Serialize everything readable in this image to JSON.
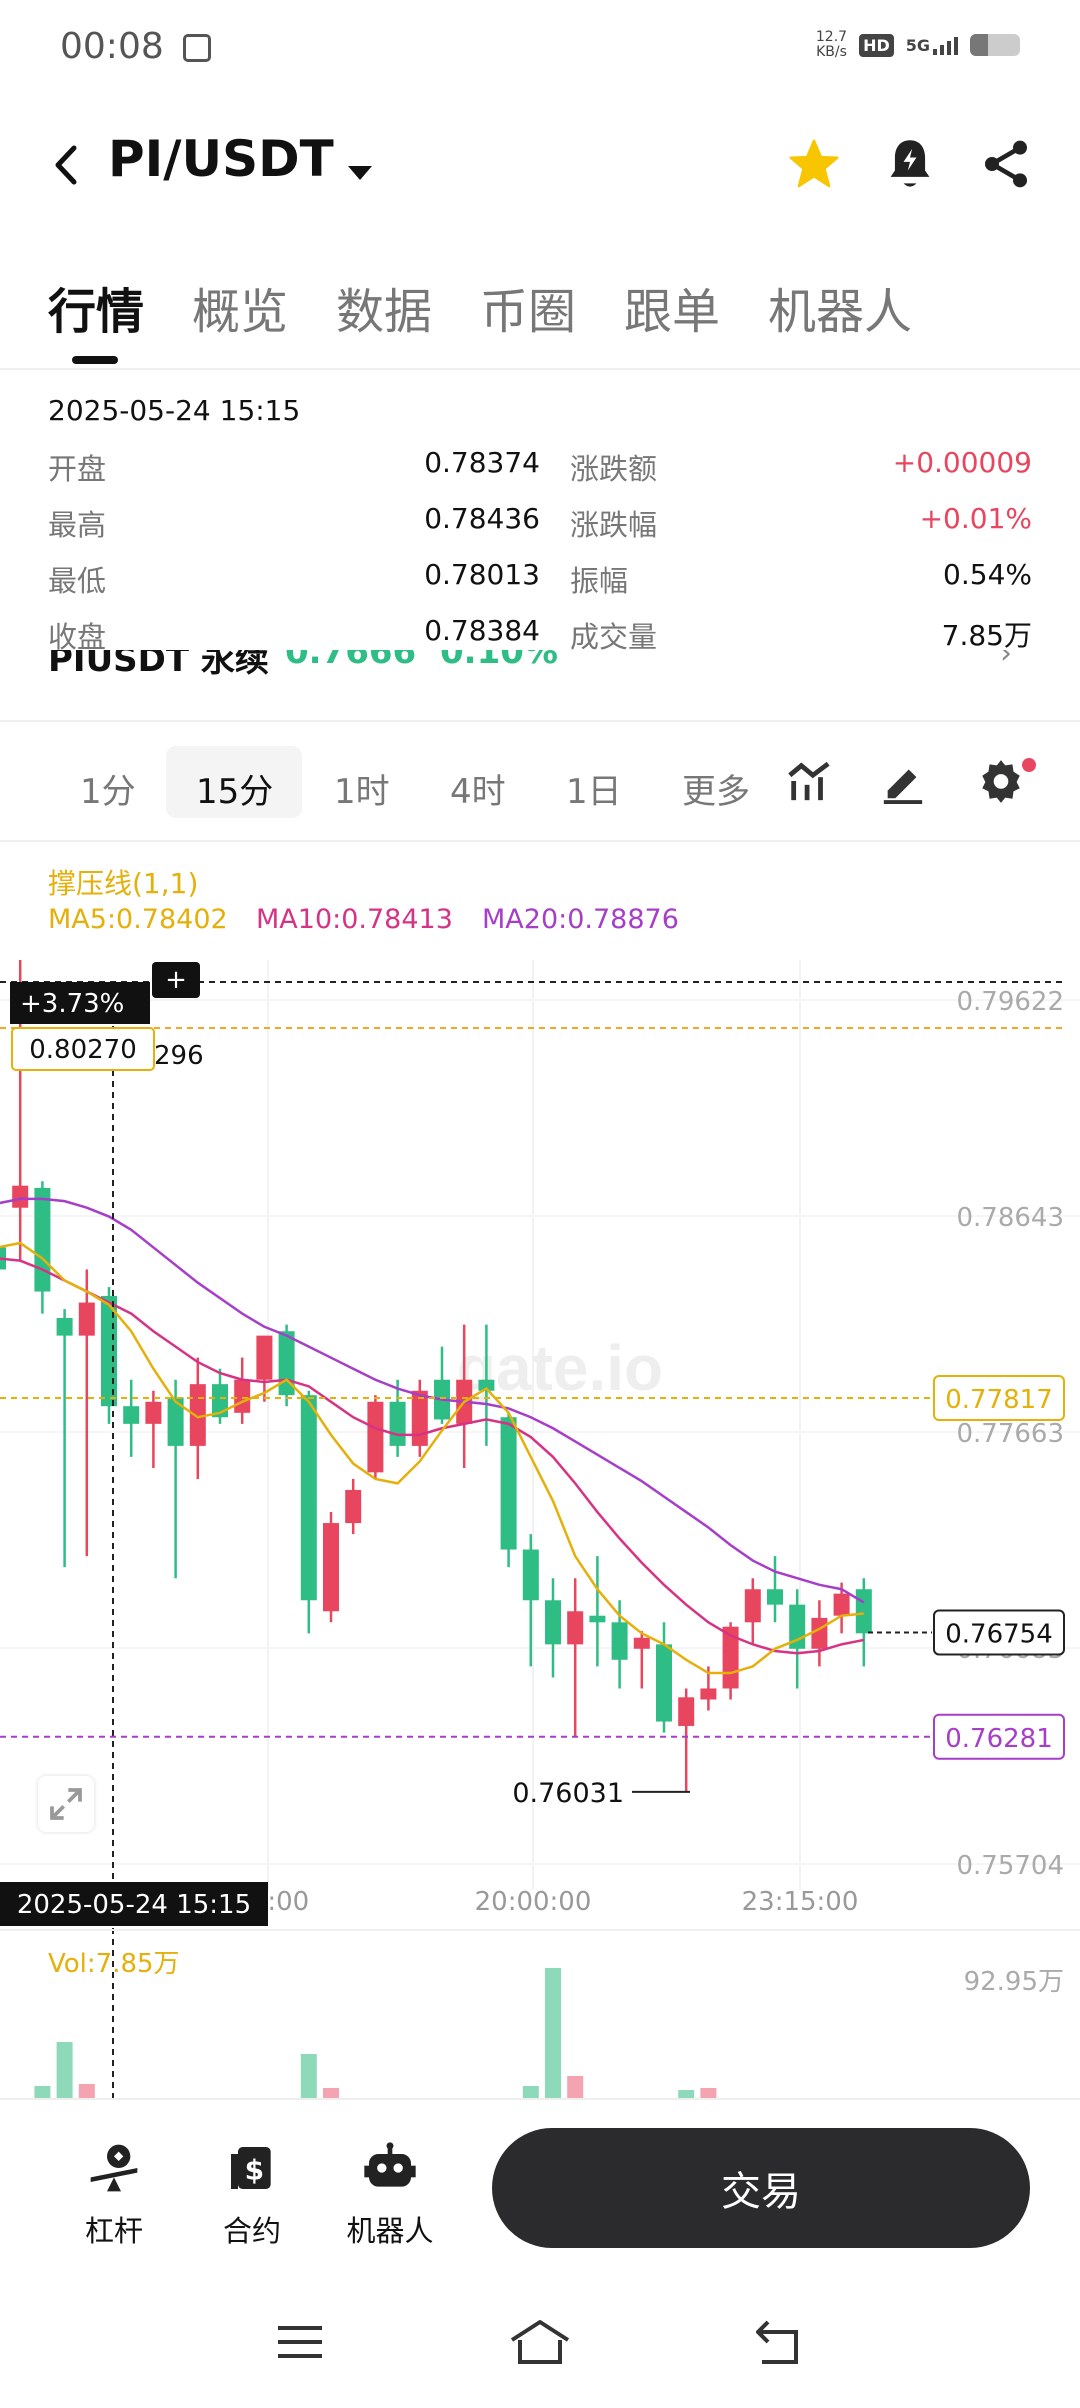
{
  "status_bar": {
    "time": "00:08",
    "speed_value": "12.7",
    "speed_unit": "KB/s",
    "hd": "HD",
    "network": "5G"
  },
  "header": {
    "pair": "PI/USDT",
    "icons": [
      "back-arrow-icon",
      "dropdown-caret-icon",
      "star-icon",
      "bell-icon",
      "share-icon"
    ],
    "star_color": "#f7c600"
  },
  "tabs": [
    "行情",
    "概览",
    "数据",
    "币圈",
    "跟单",
    "机器人"
  ],
  "ohlc": {
    "time": "2025-05-24 15:15",
    "left": [
      {
        "label": "开盘",
        "value": "0.78374"
      },
      {
        "label": "最高",
        "value": "0.78436"
      },
      {
        "label": "最低",
        "value": "0.78013"
      },
      {
        "label": "收盘",
        "value": "0.78384"
      }
    ],
    "right": [
      {
        "label": "涨跌额",
        "value": "+0.00009"
      },
      {
        "label": "涨跌幅",
        "value": "+0.01%"
      },
      {
        "label": "振幅",
        "value": "0.54%"
      },
      {
        "label": "成交量",
        "value": "7.85万"
      }
    ],
    "up_color": "#e8455f"
  },
  "ticker_peek": {
    "symbol": "PIUSDT 永续",
    "price": "0.7666",
    "change": "0.10%"
  },
  "intervals": [
    "1分",
    "15分",
    "1时",
    "4时",
    "1日",
    "更多"
  ],
  "active_interval": "15分",
  "indicators": {
    "title": "撑压线(1,1)",
    "ma5": "MA5:0.78402",
    "ma10": "MA10:0.78413",
    "ma20": "MA20:0.78876"
  },
  "chart_data": {
    "type": "candlestick",
    "y_axis_ticks": [
      "0.79622",
      "0.78643",
      "0.77663",
      "0.76683",
      "0.75704"
    ],
    "x_axis_ticks": [
      "2025-05-24 15:15",
      "20:00:00",
      "23:15:00"
    ],
    "crosshair_change": "+3.73%",
    "crosshair_price": "0.80270",
    "high_label_partial": "296",
    "support_line": "0.77817",
    "resistance_line": "0.76281",
    "last_price": "0.76754",
    "low_label": "0.76031",
    "volume_label": "Vol:7.85万",
    "volume_max": "92.95万",
    "watermark": "gate.io",
    "ylim": [
      0.75704,
      0.79622
    ],
    "candles": [
      {
        "o": 0.785,
        "h": 0.788,
        "l": 0.784,
        "c": 0.784
      },
      {
        "o": 0.7868,
        "h": 0.8027,
        "l": 0.7844,
        "c": 0.7878
      },
      {
        "o": 0.7877,
        "h": 0.788,
        "l": 0.782,
        "c": 0.783
      },
      {
        "o": 0.7818,
        "h": 0.7822,
        "l": 0.7705,
        "c": 0.781
      },
      {
        "o": 0.781,
        "h": 0.784,
        "l": 0.771,
        "c": 0.7825
      },
      {
        "o": 0.7828,
        "h": 0.7832,
        "l": 0.777,
        "c": 0.7778
      },
      {
        "o": 0.7778,
        "h": 0.779,
        "l": 0.7755,
        "c": 0.777
      },
      {
        "o": 0.777,
        "h": 0.7785,
        "l": 0.775,
        "c": 0.778
      },
      {
        "o": 0.7782,
        "h": 0.779,
        "l": 0.77,
        "c": 0.776
      },
      {
        "o": 0.776,
        "h": 0.78,
        "l": 0.7745,
        "c": 0.7788
      },
      {
        "o": 0.7788,
        "h": 0.7795,
        "l": 0.777,
        "c": 0.7773
      },
      {
        "o": 0.7775,
        "h": 0.78,
        "l": 0.777,
        "c": 0.779
      },
      {
        "o": 0.779,
        "h": 0.7808,
        "l": 0.778,
        "c": 0.781
      },
      {
        "o": 0.7812,
        "h": 0.7815,
        "l": 0.7778,
        "c": 0.7783
      },
      {
        "o": 0.7783,
        "h": 0.7785,
        "l": 0.7675,
        "c": 0.769
      },
      {
        "o": 0.7685,
        "h": 0.773,
        "l": 0.768,
        "c": 0.7725
      },
      {
        "o": 0.7725,
        "h": 0.7745,
        "l": 0.772,
        "c": 0.774
      },
      {
        "o": 0.7748,
        "h": 0.7783,
        "l": 0.7745,
        "c": 0.778
      },
      {
        "o": 0.778,
        "h": 0.779,
        "l": 0.7755,
        "c": 0.776
      },
      {
        "o": 0.776,
        "h": 0.779,
        "l": 0.7755,
        "c": 0.7785
      },
      {
        "o": 0.779,
        "h": 0.7805,
        "l": 0.777,
        "c": 0.7772
      },
      {
        "o": 0.777,
        "h": 0.7815,
        "l": 0.775,
        "c": 0.779
      },
      {
        "o": 0.779,
        "h": 0.7815,
        "l": 0.776,
        "c": 0.7785
      },
      {
        "o": 0.7773,
        "h": 0.7775,
        "l": 0.7705,
        "c": 0.7713
      },
      {
        "o": 0.7713,
        "h": 0.772,
        "l": 0.766,
        "c": 0.769
      },
      {
        "o": 0.769,
        "h": 0.77,
        "l": 0.7655,
        "c": 0.767
      },
      {
        "o": 0.767,
        "h": 0.77,
        "l": 0.7628,
        "c": 0.7685
      },
      {
        "o": 0.7683,
        "h": 0.771,
        "l": 0.766,
        "c": 0.768
      },
      {
        "o": 0.768,
        "h": 0.769,
        "l": 0.765,
        "c": 0.7663
      },
      {
        "o": 0.7668,
        "h": 0.7676,
        "l": 0.765,
        "c": 0.7673
      },
      {
        "o": 0.767,
        "h": 0.768,
        "l": 0.763,
        "c": 0.7635
      },
      {
        "o": 0.7633,
        "h": 0.765,
        "l": 0.7603,
        "c": 0.7646
      },
      {
        "o": 0.7645,
        "h": 0.766,
        "l": 0.764,
        "c": 0.765
      },
      {
        "o": 0.765,
        "h": 0.768,
        "l": 0.7645,
        "c": 0.7678
      },
      {
        "o": 0.768,
        "h": 0.77,
        "l": 0.767,
        "c": 0.7695
      },
      {
        "o": 0.7695,
        "h": 0.771,
        "l": 0.768,
        "c": 0.7688
      },
      {
        "o": 0.7688,
        "h": 0.7695,
        "l": 0.765,
        "c": 0.7668
      },
      {
        "o": 0.7668,
        "h": 0.769,
        "l": 0.766,
        "c": 0.7682
      },
      {
        "o": 0.7683,
        "h": 0.7698,
        "l": 0.7675,
        "c": 0.7693
      },
      {
        "o": 0.7695,
        "h": 0.77,
        "l": 0.766,
        "c": 0.7675
      }
    ],
    "ma5": [
      0.785,
      0.7852,
      0.7845,
      0.7835,
      0.783,
      0.7824,
      0.7812,
      0.7795,
      0.778,
      0.7773,
      0.7775,
      0.778,
      0.7784,
      0.779,
      0.778,
      0.7765,
      0.7752,
      0.7745,
      0.7743,
      0.7753,
      0.7767,
      0.778,
      0.7786,
      0.7775,
      0.7755,
      0.7735,
      0.771,
      0.7695,
      0.7683,
      0.7675,
      0.767,
      0.7663,
      0.7657,
      0.7657,
      0.766,
      0.7668,
      0.7672,
      0.7677,
      0.7683,
      0.7684
    ],
    "ma10": [
      0.7845,
      0.7844,
      0.784,
      0.7835,
      0.783,
      0.7825,
      0.782,
      0.7812,
      0.7805,
      0.7798,
      0.7793,
      0.779,
      0.7789,
      0.779,
      0.7787,
      0.778,
      0.7773,
      0.7768,
      0.7765,
      0.7765,
      0.7768,
      0.777,
      0.7772,
      0.777,
      0.7764,
      0.7755,
      0.7743,
      0.773,
      0.7718,
      0.7707,
      0.7697,
      0.7688,
      0.768,
      0.7674,
      0.767,
      0.7667,
      0.7666,
      0.7667,
      0.767,
      0.7672
    ],
    "ma20": [
      0.787,
      0.7872,
      0.7872,
      0.7871,
      0.7868,
      0.7864,
      0.7858,
      0.785,
      0.7842,
      0.7834,
      0.7827,
      0.782,
      0.7814,
      0.781,
      0.7805,
      0.78,
      0.7795,
      0.779,
      0.7786,
      0.7783,
      0.7781,
      0.778,
      0.7779,
      0.7777,
      0.7773,
      0.7768,
      0.7762,
      0.7756,
      0.775,
      0.7744,
      0.7737,
      0.773,
      0.7723,
      0.7715,
      0.7708,
      0.7703,
      0.77,
      0.7697,
      0.7695,
      0.7689
    ],
    "colors": {
      "up": "#e8455f",
      "down": "#2ebd85",
      "ma5": "#e5b00a",
      "ma10": "#d63384",
      "ma20": "#a63ec9"
    }
  },
  "bottom_bar": {
    "items": [
      {
        "label": "杠杆",
        "icon": "leverage-icon"
      },
      {
        "label": "合约",
        "icon": "contract-icon"
      },
      {
        "label": "机器人",
        "icon": "robot-icon"
      }
    ],
    "trade": "交易"
  }
}
